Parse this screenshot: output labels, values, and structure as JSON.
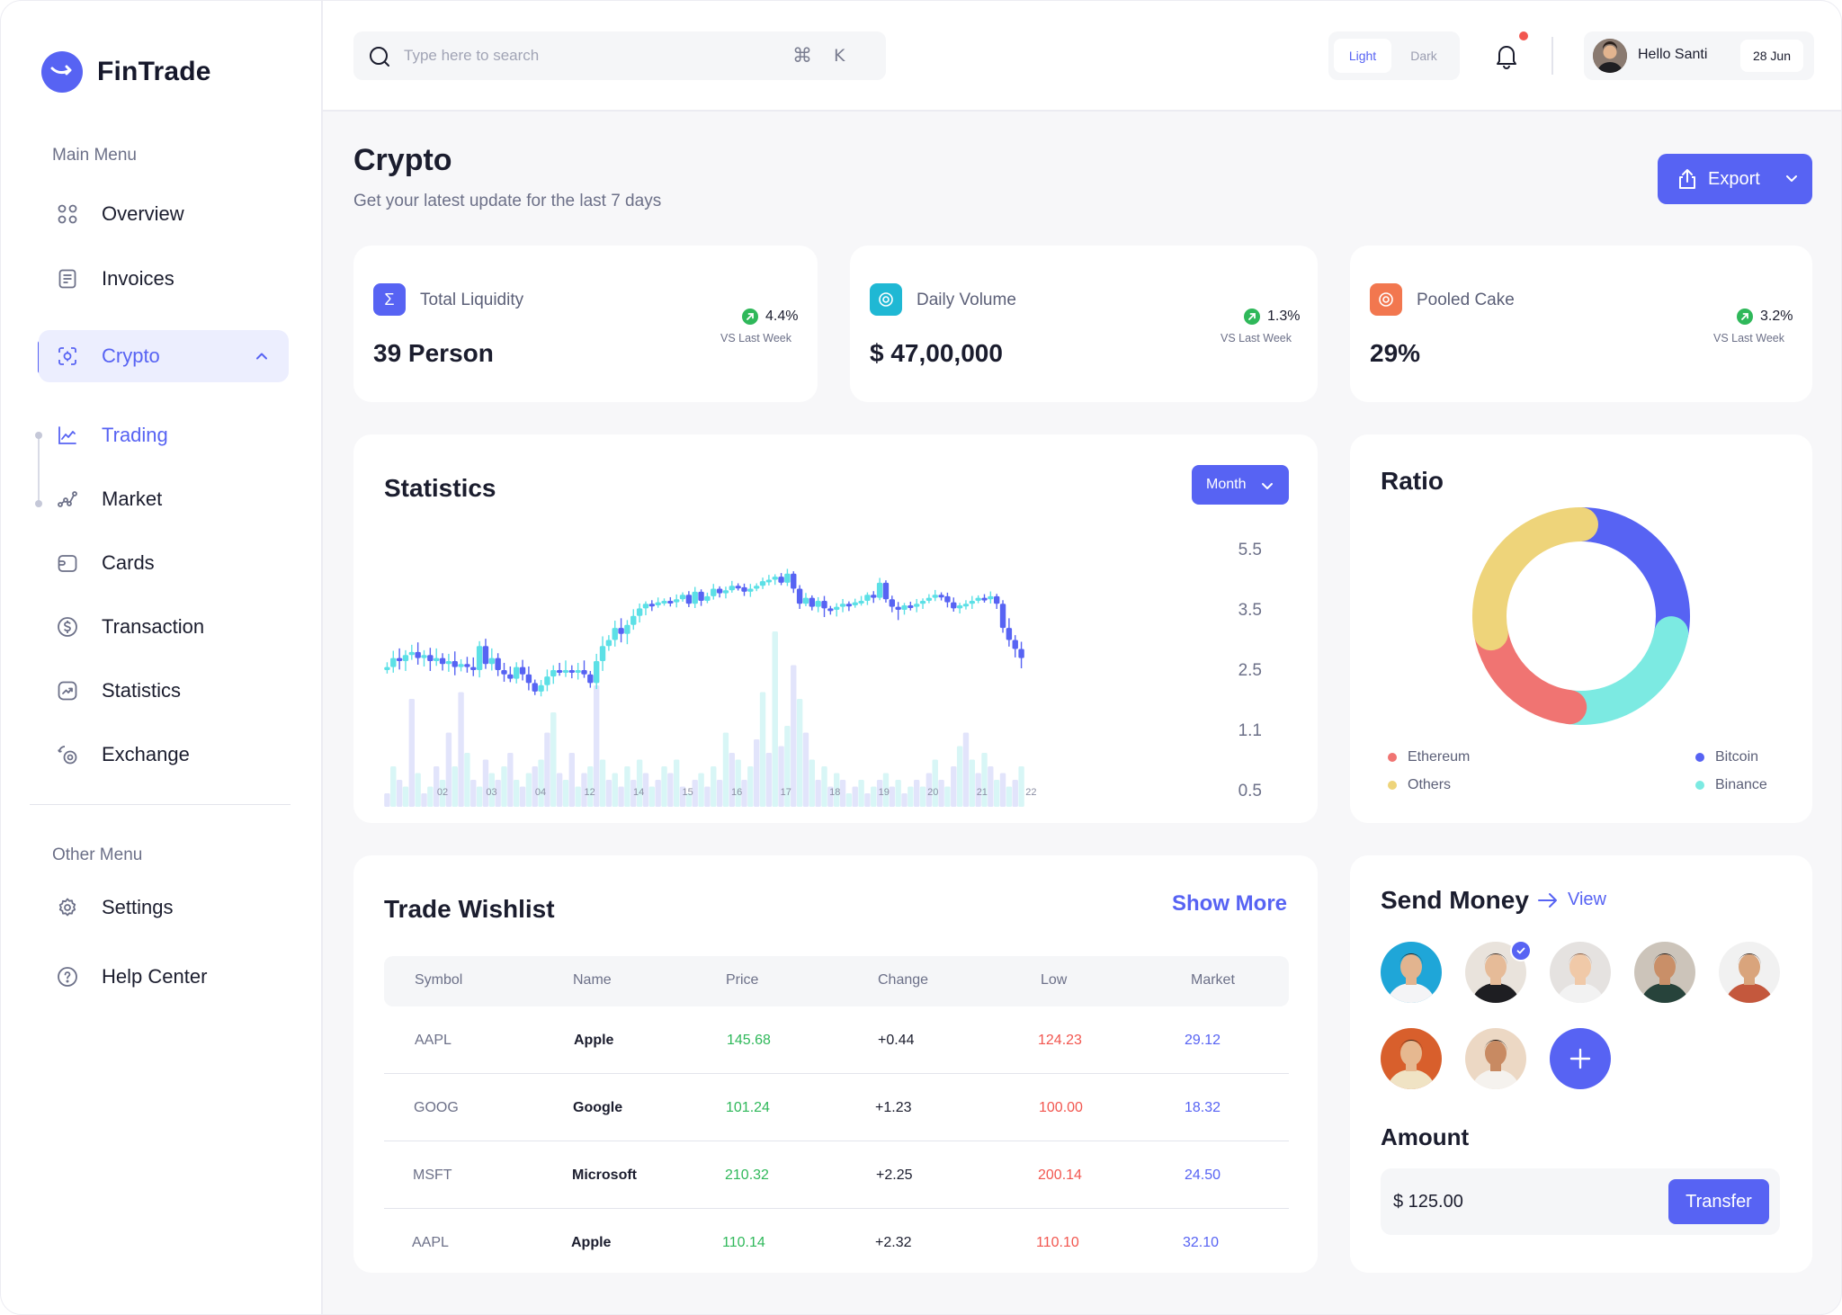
{
  "app": {
    "name": "FinTrade",
    "accent": "#5763f3"
  },
  "sidebar": {
    "main_menu_heading": "Main Menu",
    "other_menu_heading": "Other Menu",
    "items": [
      {
        "label": "Overview",
        "icon": "grid-icon"
      },
      {
        "label": "Invoices",
        "icon": "document-icon"
      },
      {
        "label": "Crypto",
        "icon": "scan-icon",
        "active": true,
        "expanded": true
      },
      {
        "label": "Trading",
        "icon": "line-chart-icon",
        "active_sub": true
      },
      {
        "label": "Market",
        "icon": "trend-nodes-icon"
      },
      {
        "label": "Cards",
        "icon": "card-icon"
      },
      {
        "label": "Transaction",
        "icon": "dollar-circle-icon"
      },
      {
        "label": "Statistics",
        "icon": "chart-box-icon"
      },
      {
        "label": "Exchange",
        "icon": "exchange-icon"
      }
    ],
    "other_items": [
      {
        "label": "Settings",
        "icon": "gear-icon"
      },
      {
        "label": "Help Center",
        "icon": "help-icon"
      }
    ]
  },
  "topbar": {
    "search_placeholder": "Type here to search",
    "shortcut_key": "K",
    "theme_light": "Light",
    "theme_dark": "Dark",
    "theme_selected": "Light",
    "greeting": "Hello Santi",
    "date": "28 Jun"
  },
  "header": {
    "title": "Crypto",
    "subtitle": "Get your latest update for the last 7 days",
    "export_label": "Export"
  },
  "stats": [
    {
      "title": "Total Liquidity",
      "value": "39 Person",
      "change": "4.4%",
      "compare": "VS Last Week",
      "icon": "sigma-icon",
      "color": "#5763f3"
    },
    {
      "title": "Daily Volume",
      "value": "$ 47,00,000",
      "change": "1.3%",
      "compare": "VS Last Week",
      "icon": "coin-icon",
      "color": "#1fb8d4"
    },
    {
      "title": "Pooled Cake",
      "value": "29%",
      "change": "3.2%",
      "compare": "VS Last Week",
      "icon": "target-icon",
      "color": "#f2774f"
    }
  ],
  "statistics": {
    "title": "Statistics",
    "period": "Month",
    "chart_data": {
      "type": "candlestick",
      "y_ticks": [
        "5.5",
        "3.5",
        "2.5",
        "1.1",
        "0.5"
      ],
      "x_ticks": [
        "02",
        "03",
        "04",
        "12",
        "14",
        "15",
        "16",
        "17",
        "18",
        "19",
        "20",
        "21",
        "22"
      ],
      "up_color": "#5ce0e6",
      "down_color": "#5763f3",
      "close_prices": [
        2.55,
        2.7,
        2.65,
        2.75,
        2.8,
        2.7,
        2.75,
        2.65,
        2.7,
        2.6,
        2.65,
        2.55,
        2.6,
        2.55,
        2.5,
        2.9,
        2.6,
        2.7,
        2.5,
        2.4,
        2.3,
        2.55,
        2.4,
        2.2,
        2.0,
        2.15,
        2.35,
        2.5,
        2.45,
        2.5,
        2.45,
        2.5,
        2.4,
        2.2,
        2.65,
        2.9,
        3.0,
        3.2,
        3.1,
        3.25,
        3.4,
        3.55,
        3.7,
        3.65,
        3.75,
        3.8,
        3.75,
        3.85,
        4.0,
        3.7,
        4.1,
        3.8,
        3.95,
        4.2,
        4.05,
        4.15,
        4.3,
        4.25,
        4.1,
        4.2,
        4.3,
        4.45,
        4.5,
        4.6,
        4.4,
        4.7,
        4.2,
        3.7,
        3.9,
        3.6,
        3.8,
        3.55,
        3.5,
        3.6,
        3.7,
        3.65,
        3.75,
        3.8,
        4.0,
        3.9,
        4.4,
        3.85,
        3.6,
        3.5,
        3.65,
        3.6,
        3.7,
        3.8,
        3.9,
        4.0,
        3.95,
        3.75,
        3.55,
        3.65,
        3.7,
        3.8,
        3.9,
        3.85,
        3.95,
        3.7,
        3.2,
        3.0,
        2.85,
        2.7
      ],
      "volumes": [
        0.1,
        0.3,
        0.2,
        0.15,
        0.8,
        0.25,
        0.1,
        0.15,
        0.3,
        0.2,
        0.55,
        0.3,
        0.85,
        0.4,
        0.2,
        0.15,
        0.35,
        0.25,
        0.2,
        0.3,
        0.4,
        0.2,
        0.15,
        0.25,
        0.3,
        0.35,
        0.55,
        0.7,
        0.25,
        0.2,
        0.4,
        0.15,
        0.25,
        0.3,
        0.9,
        0.35,
        0.2,
        0.25,
        0.15,
        0.3,
        0.2,
        0.35,
        0.25,
        0.15,
        0.2,
        0.3,
        0.25,
        0.35,
        0.15,
        0.1,
        0.2,
        0.25,
        0.15,
        0.3,
        0.2,
        0.55,
        0.4,
        0.35,
        0.2,
        0.3,
        0.5,
        0.85,
        0.4,
        1.3,
        0.45,
        0.6,
        1.05,
        0.8,
        0.55,
        0.35,
        0.2,
        0.3,
        0.15,
        0.25,
        0.2,
        0.1,
        0.15,
        0.2,
        0.1,
        0.15,
        0.2,
        0.25,
        0.15,
        0.2,
        0.1,
        0.15,
        0.2,
        0.15,
        0.25,
        0.35,
        0.2,
        0.15,
        0.3,
        0.45,
        0.55,
        0.35,
        0.25,
        0.4,
        0.3,
        0.2,
        0.25,
        0.15,
        0.2,
        0.3
      ]
    }
  },
  "ratio": {
    "title": "Ratio",
    "chart_data": {
      "type": "pie",
      "style": "donut",
      "labels": [
        "Bitcoin",
        "Binance",
        "Ethereum",
        "Others"
      ],
      "values": [
        28,
        24,
        20,
        28
      ],
      "colors": [
        "#5763f3",
        "#7ceae2",
        "#f07472",
        "#eed47a"
      ]
    },
    "legend": [
      {
        "label": "Ethereum",
        "color": "#f07472"
      },
      {
        "label": "Bitcoin",
        "color": "#5763f3"
      },
      {
        "label": "Others",
        "color": "#eed47a"
      },
      {
        "label": "Binance",
        "color": "#7ceae2"
      }
    ]
  },
  "wishlist": {
    "title": "Trade Wishlist",
    "show_more": "Show More",
    "columns": [
      "Symbol",
      "Name",
      "Price",
      "Change",
      "Low",
      "Market"
    ],
    "rows": [
      {
        "symbol": "AAPL",
        "name": "Apple",
        "price": "145.68",
        "change": "+0.44",
        "low": "124.23",
        "market": "29.12"
      },
      {
        "symbol": "GOOG",
        "name": "Google",
        "price": "101.24",
        "change": "+1.23",
        "low": "100.00",
        "market": "18.32"
      },
      {
        "symbol": "MSFT",
        "name": "Microsoft",
        "price": "210.32",
        "change": "+2.25",
        "low": "200.14",
        "market": "24.50"
      },
      {
        "symbol": "AAPL",
        "name": "Apple",
        "price": "110.14",
        "change": "+2.32",
        "low": "110.10",
        "market": "32.10"
      }
    ]
  },
  "send_money": {
    "title": "Send Money",
    "view_label": "View",
    "contacts": [
      {
        "bg": "#1fa6d8",
        "skin": "#e2b48f",
        "hair": "#2a1f1a",
        "shirt": "#f4f4f6"
      },
      {
        "bg": "#e9e3dc",
        "skin": "#e6bb98",
        "hair": "#3a2a22",
        "shirt": "#1e1e22",
        "selected": true
      },
      {
        "bg": "#e5e2e0",
        "skin": "#f0c9a8",
        "hair": "#8b5a3c",
        "shirt": "#f2f2f2"
      },
      {
        "bg": "#ccc4ba",
        "skin": "#c98f68",
        "hair": "#1f1612",
        "shirt": "#27433b"
      },
      {
        "bg": "#f1f1f1",
        "skin": "#d9a47c",
        "hair": "#3a2418",
        "shirt": "#c4583d"
      },
      {
        "bg": "#d85f2c",
        "skin": "#e6b890",
        "hair": "#3e2719",
        "shirt": "#f0e3c4"
      },
      {
        "bg": "#ecd8c4",
        "skin": "#c88a62",
        "hair": "#1d1410",
        "shirt": "#f5f2ee"
      }
    ],
    "amount_title": "Amount",
    "amount_value": "$ 125.00",
    "transfer_label": "Transfer"
  }
}
